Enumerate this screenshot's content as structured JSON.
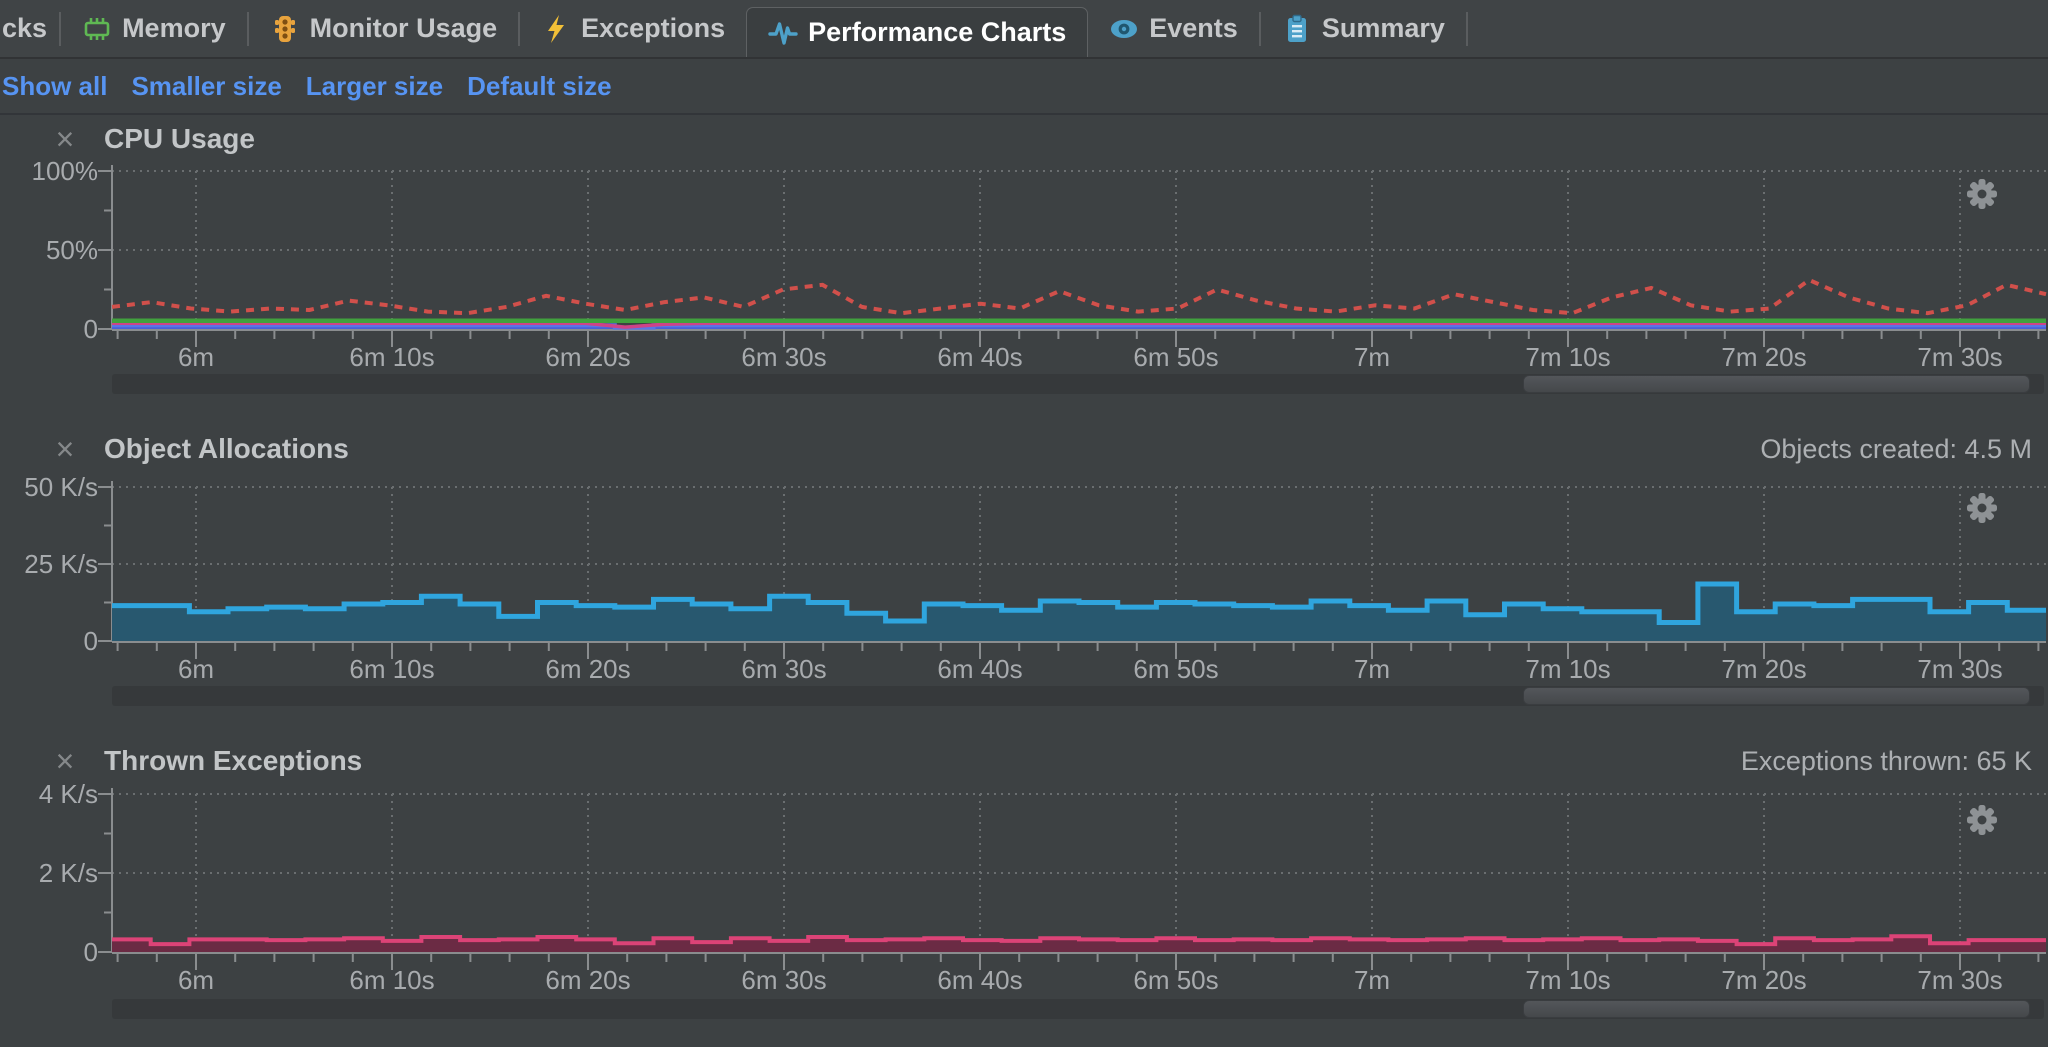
{
  "tabs": {
    "items": [
      {
        "label": "cks",
        "icon": null,
        "selected": false,
        "partial": true
      },
      {
        "label": "Memory",
        "icon": "memory-icon",
        "selected": false
      },
      {
        "label": "Monitor Usage",
        "icon": "traffic-light-icon",
        "selected": false
      },
      {
        "label": "Exceptions",
        "icon": "lightning-icon",
        "selected": false
      },
      {
        "label": "Performance Charts",
        "icon": "pulse-icon",
        "selected": true
      },
      {
        "label": "Events",
        "icon": "eye-icon",
        "selected": false
      },
      {
        "label": "Summary",
        "icon": "clipboard-icon",
        "selected": false
      }
    ]
  },
  "toolbar": {
    "links": [
      "Show all",
      "Smaller size",
      "Larger size",
      "Default size"
    ],
    "link_color": "#5794F2"
  },
  "icons": {
    "close": "×",
    "gear": "gear-icon"
  },
  "panels": [
    {
      "title": "CPU Usage",
      "stat": ""
    },
    {
      "title": "Object Allocations",
      "stat": "Objects created: 4.5 M"
    },
    {
      "title": "Thrown Exceptions",
      "stat": "Exceptions thrown: 65 K"
    }
  ],
  "colors": {
    "background": "#3D4143",
    "tabbar": "#404446",
    "link_blue": "#5794F2",
    "cpu_red": "#D1504B",
    "cpu_green": "#41A13E",
    "cpu_magenta": "#CE4387",
    "cpu_blue": "#4A5FD8",
    "alloc_line": "#2FA5DE",
    "alloc_fill": "#28586F",
    "exc_line": "#DC4377",
    "exc_fill": "#6B2B44"
  },
  "chart_data": [
    {
      "id": "cpu-usage",
      "type": "line",
      "title": "CPU Usage",
      "ylabel_ticks": [
        "100%",
        "50%",
        "0"
      ],
      "ylim": [
        0,
        100
      ],
      "x_ticks": [
        "6m",
        "6m 10s",
        "6m 20s",
        "6m 30s",
        "6m 40s",
        "6m 50s",
        "7m",
        "7m 10s",
        "7m 20s",
        "7m 30s"
      ],
      "samples": 50,
      "grid": true,
      "legend": "none",
      "series": [
        {
          "name": "blue-area",
          "style": "area",
          "color": "#5B74E6",
          "fill": "#4A5FD8",
          "constant": 2.4,
          "overrides": {
            "13": 0.9
          }
        },
        {
          "name": "magenta-line",
          "style": "solid",
          "color": "#CE4387",
          "width": 3.5,
          "constant": 3.6,
          "overrides": {
            "13": 1.2,
            "14": 3.0
          }
        },
        {
          "name": "green-line",
          "style": "solid",
          "color": "#41A13E",
          "width": 4.5,
          "constant": 5.2
        },
        {
          "name": "red-dotted-line",
          "style": "dotted",
          "color": "#D1504B",
          "width": 4,
          "values": [
            14,
            17,
            13,
            11,
            13,
            12,
            18,
            15,
            11,
            10,
            14,
            21,
            16,
            12,
            17,
            20,
            14,
            25,
            28,
            14,
            10,
            13,
            16,
            13,
            24,
            15,
            11,
            13,
            25,
            18,
            13,
            11,
            15,
            13,
            22,
            17,
            12,
            10,
            20,
            26,
            15,
            11,
            13,
            31,
            20,
            13,
            10,
            15,
            28,
            22
          ]
        }
      ]
    },
    {
      "id": "object-allocations",
      "type": "area",
      "title": "Object Allocations",
      "stat": "Objects created: 4.5 M",
      "ylabel_ticks": [
        "50 K/s",
        "25 K/s",
        "0"
      ],
      "ylim": [
        0,
        50
      ],
      "x_ticks": [
        "6m",
        "6m 10s",
        "6m 20s",
        "6m 30s",
        "6m 40s",
        "6m 50s",
        "7m",
        "7m 10s",
        "7m 20s",
        "7m 30s"
      ],
      "samples": 50,
      "grid": true,
      "legend": "none",
      "series": [
        {
          "name": "allocations-step-area",
          "style": "step-area",
          "color": "#2FA5DE",
          "fill": "#28586F",
          "width": 5,
          "values": [
            11.5,
            11.5,
            9.5,
            10.5,
            11,
            10.5,
            12,
            12.5,
            14.5,
            12,
            8,
            12.5,
            11.5,
            11,
            13.5,
            12,
            10.5,
            14.5,
            12.5,
            9,
            6.5,
            12,
            11.5,
            10,
            13,
            12.5,
            11,
            12.5,
            12,
            11.5,
            11,
            13,
            11.5,
            10,
            13,
            8.5,
            12,
            10.5,
            9.5,
            9.5,
            6,
            18.5,
            9.5,
            12,
            11.5,
            13.5,
            13.5,
            9.5,
            12.5,
            10
          ]
        }
      ]
    },
    {
      "id": "thrown-exceptions",
      "type": "area",
      "title": "Thrown Exceptions",
      "stat": "Exceptions thrown: 65 K",
      "ylabel_ticks": [
        "4 K/s",
        "2 K/s",
        "0"
      ],
      "ylim": [
        0,
        4
      ],
      "x_ticks": [
        "6m",
        "6m 10s",
        "6m 20s",
        "6m 30s",
        "6m 40s",
        "6m 50s",
        "7m",
        "7m 10s",
        "7m 20s",
        "7m 30s"
      ],
      "samples": 50,
      "grid": true,
      "legend": "none",
      "series": [
        {
          "name": "exceptions-step-area",
          "style": "step-area",
          "color": "#DC4377",
          "fill": "#6B2B44",
          "width": 4,
          "values": [
            0.32,
            0.2,
            0.32,
            0.32,
            0.3,
            0.32,
            0.35,
            0.28,
            0.38,
            0.3,
            0.32,
            0.38,
            0.32,
            0.22,
            0.35,
            0.25,
            0.35,
            0.28,
            0.38,
            0.3,
            0.32,
            0.35,
            0.3,
            0.28,
            0.35,
            0.32,
            0.3,
            0.35,
            0.3,
            0.32,
            0.3,
            0.35,
            0.32,
            0.3,
            0.32,
            0.35,
            0.3,
            0.32,
            0.35,
            0.3,
            0.32,
            0.28,
            0.2,
            0.35,
            0.3,
            0.32,
            0.4,
            0.22,
            0.3,
            0.3
          ]
        }
      ]
    }
  ]
}
